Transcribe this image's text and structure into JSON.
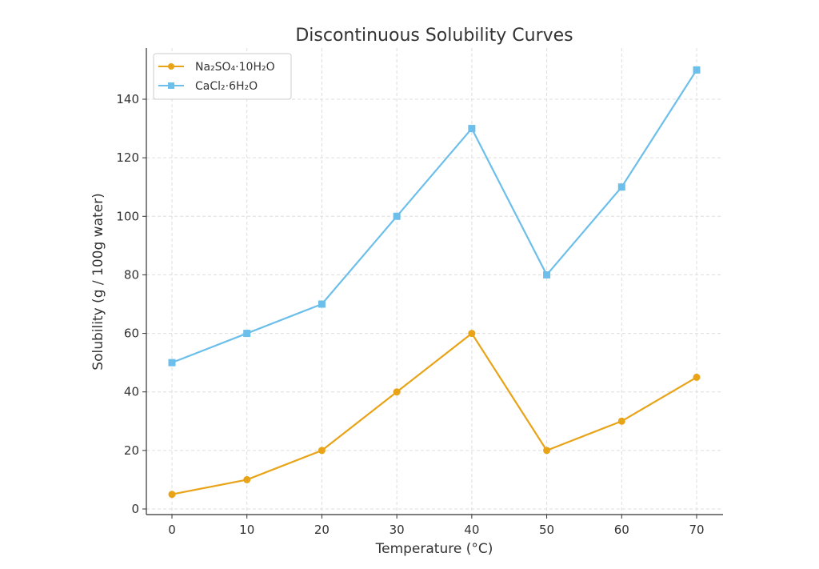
{
  "chart_data": {
    "type": "line",
    "title": "Discontinuous Solubility Curves",
    "xlabel": "Temperature (°C)",
    "ylabel": "Solubility (g / 100g water)",
    "x": [
      0,
      10,
      20,
      30,
      40,
      50,
      60,
      70
    ],
    "xticks": [
      "0",
      "10",
      "20",
      "30",
      "40",
      "50",
      "60",
      "70"
    ],
    "yticks": [
      "0",
      "20",
      "40",
      "60",
      "80",
      "100",
      "120",
      "140"
    ],
    "xlim": [
      -3.4,
      73.5
    ],
    "ylim": [
      -2,
      157
    ],
    "grid": true,
    "legend_position": "top-left",
    "series": [
      {
        "name": "Na₂SO₄·10H₂O",
        "values": [
          5,
          10,
          20,
          40,
          60,
          20,
          30,
          45
        ],
        "color": "#E8A317",
        "marker": "circle"
      },
      {
        "name": "CaCl₂·6H₂O",
        "values": [
          50,
          60,
          70,
          100,
          130,
          80,
          110,
          150
        ],
        "color": "#6CBFEA",
        "marker": "square"
      }
    ]
  }
}
